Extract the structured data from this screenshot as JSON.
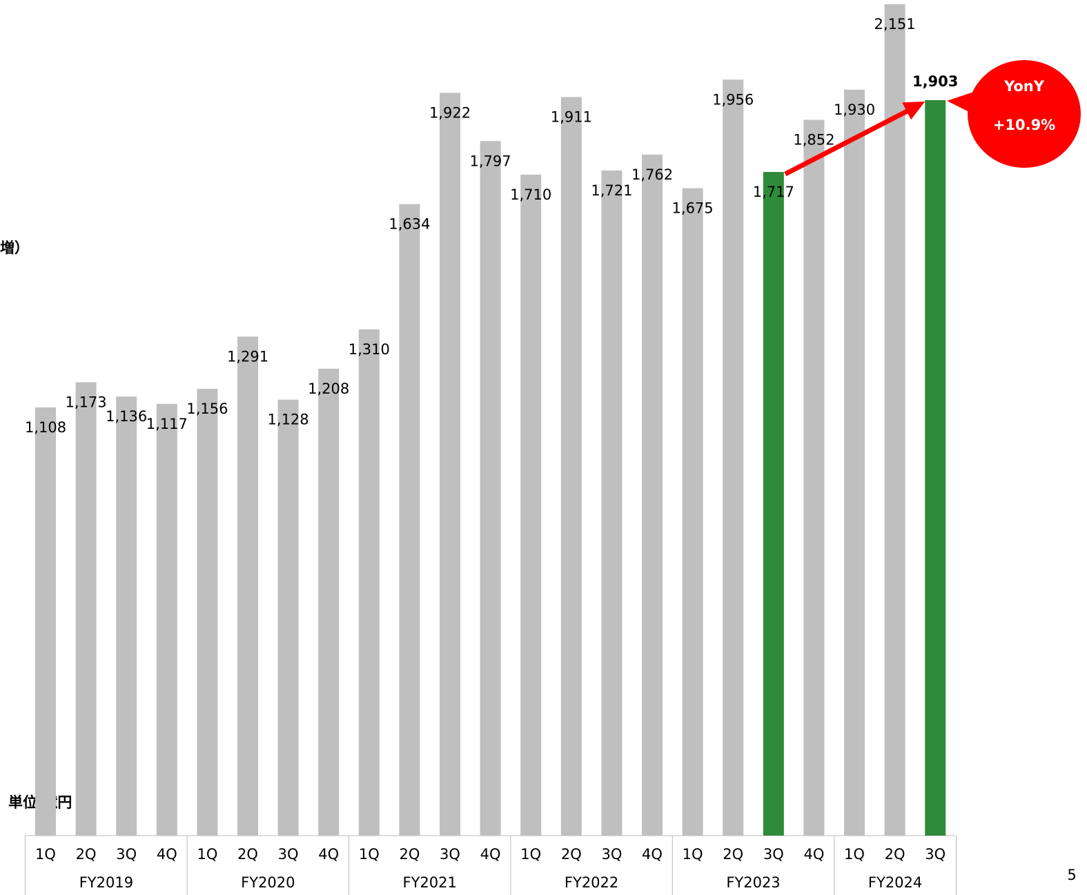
{
  "chart_data": {
    "type": "bar",
    "title": "増）",
    "unit_label": "単位:億円",
    "page_number": "5",
    "groups": [
      {
        "label": "FY2019",
        "categories": [
          "1Q",
          "2Q",
          "3Q",
          "4Q"
        ]
      },
      {
        "label": "FY2020",
        "categories": [
          "1Q",
          "2Q",
          "3Q",
          "4Q"
        ]
      },
      {
        "label": "FY2021",
        "categories": [
          "1Q",
          "2Q",
          "3Q",
          "4Q"
        ]
      },
      {
        "label": "FY2022",
        "categories": [
          "1Q",
          "2Q",
          "3Q",
          "4Q"
        ]
      },
      {
        "label": "FY2023",
        "categories": [
          "1Q",
          "2Q",
          "3Q",
          "4Q"
        ]
      },
      {
        "label": "FY2024",
        "categories": [
          "1Q",
          "2Q",
          "3Q"
        ]
      }
    ],
    "values": [
      1108,
      1173,
      1136,
      1117,
      1156,
      1291,
      1128,
      1208,
      1310,
      1634,
      1922,
      1797,
      1710,
      1911,
      1721,
      1762,
      1675,
      1956,
      1717,
      1852,
      1930,
      2151,
      1903
    ],
    "value_labels": [
      "1,108",
      "1,173",
      "1,136",
      "1,117",
      "1,156",
      "1,291",
      "1,128",
      "1,208",
      "1,310",
      "1,634",
      "1,922",
      "1,797",
      "1,710",
      "1,911",
      "1,721",
      "1,762",
      "1,675",
      "1,956",
      "1,717",
      "1,852",
      "1,930",
      "2,151",
      "1,903"
    ],
    "colors": [
      "#bfbfbf",
      "#bfbfbf",
      "#bfbfbf",
      "#bfbfbf",
      "#bfbfbf",
      "#bfbfbf",
      "#bfbfbf",
      "#bfbfbf",
      "#bfbfbf",
      "#bfbfbf",
      "#bfbfbf",
      "#bfbfbf",
      "#bfbfbf",
      "#bfbfbf",
      "#bfbfbf",
      "#bfbfbf",
      "#bfbfbf",
      "#bfbfbf",
      "#2e8b3a",
      "#bfbfbf",
      "#bfbfbf",
      "#bfbfbf",
      "#2e8b3a"
    ],
    "ylim": [
      0,
      2162
    ],
    "callout": {
      "title": "YonY",
      "change": "+10.9%"
    }
  }
}
